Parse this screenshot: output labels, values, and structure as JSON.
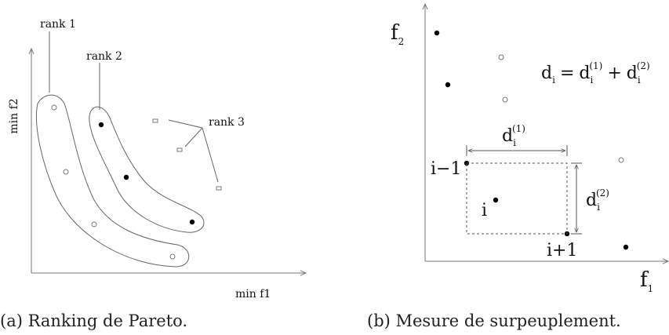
{
  "figure_a": {
    "label_rank1": "rank 1",
    "label_rank2": "rank 2",
    "label_rank3": "rank 3",
    "ylabel": "min f2",
    "xlabel": "min f1",
    "caption": "(a) Ranking de Pareto."
  },
  "figure_b": {
    "ylabel": "f",
    "ylabel_sub": "2",
    "xlabel": "f",
    "xlabel_sub": "1",
    "eq_d": "d",
    "eq_i": "i",
    "eq_eq": "=",
    "eq_plus": "+",
    "sup1": "(1)",
    "sup2": "(2)",
    "pt_prev": "i−1",
    "pt_i": "i",
    "pt_next": "i+1",
    "caption": "(b) Mesure de surpeuplement."
  }
}
